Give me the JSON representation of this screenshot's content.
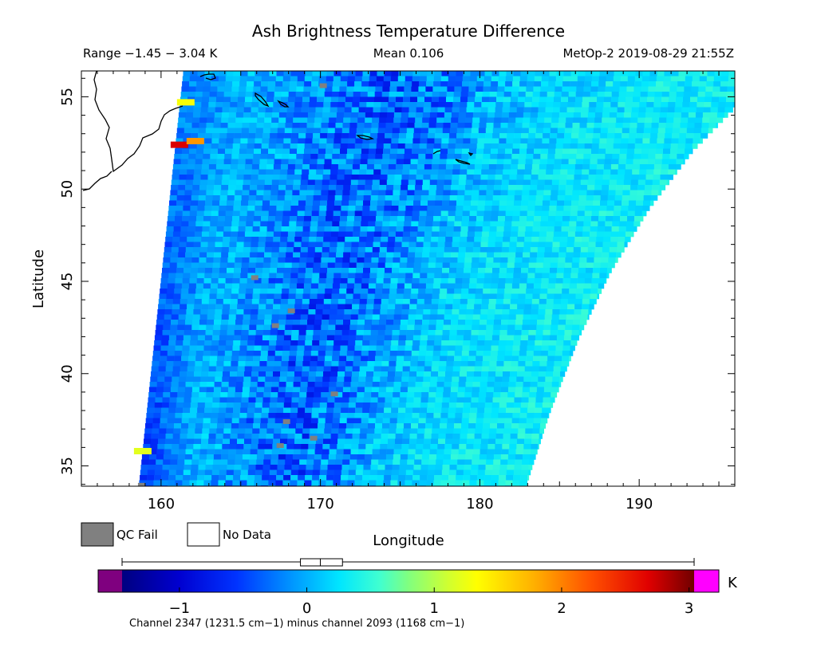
{
  "chart_data": {
    "type": "heatmap",
    "title": "Ash Brightness Temperature Difference",
    "subtitle_left": "Range −1.45 − 3.04 K",
    "subtitle_center": "Mean 0.106",
    "subtitle_right": "MetOp-2 2019-08-29 21:55Z",
    "xlabel": "Longitude",
    "ylabel": "Latitude",
    "xlim": [
      155,
      196
    ],
    "ylim": [
      33.9,
      56.4
    ],
    "xticks": [
      160,
      170,
      180,
      190
    ],
    "yticks": [
      35,
      40,
      45,
      50,
      55
    ],
    "value_range": [
      -1.45,
      3.04
    ],
    "mean": 0.106,
    "swath": {
      "left_edge": [
        [
          161.4,
          56.4
        ],
        [
          158.6,
          33.9
        ]
      ],
      "right_edge": [
        [
          196,
          54.4
        ],
        [
          193.4,
          52.1
        ],
        [
          190.6,
          48.9
        ],
        [
          188.2,
          45.5
        ],
        [
          186.2,
          41.9
        ],
        [
          184.4,
          37.9
        ],
        [
          182.9,
          33.9
        ]
      ]
    },
    "anomalies": [
      {
        "lon": 161.2,
        "lat": 52.4,
        "value": 2.7
      },
      {
        "lon": 162.2,
        "lat": 52.6,
        "value": 1.9
      },
      {
        "lon": 161.6,
        "lat": 54.7,
        "value": 1.3
      },
      {
        "lon": 158.9,
        "lat": 35.8,
        "value": 1.2
      }
    ],
    "qc_fail": [
      {
        "lon": 158.8,
        "lat": 33.95
      },
      {
        "lon": 165.9,
        "lat": 45.2
      },
      {
        "lon": 167.9,
        "lat": 37.4
      },
      {
        "lon": 167.5,
        "lat": 36.1
      },
      {
        "lon": 169.6,
        "lat": 36.5
      },
      {
        "lon": 170.9,
        "lat": 38.9
      },
      {
        "lon": 167.2,
        "lat": 42.6
      },
      {
        "lon": 168.2,
        "lat": 43.4
      },
      {
        "lon": 170.2,
        "lat": 55.6
      }
    ]
  },
  "legend": {
    "qc_fail_label": "QC Fail",
    "no_data_label": "No Data",
    "qc_fail_color": "#808080",
    "no_data_color": "#ffffff"
  },
  "colorbar": {
    "min": -1.45,
    "max": 3.04,
    "mean": 0.106,
    "unit": "K",
    "ticks": [
      -1,
      0,
      1,
      2,
      3
    ],
    "tick_labels": [
      "−1",
      "0",
      "1",
      "2",
      "3"
    ],
    "box_q1": -0.05,
    "box_q3": 0.28,
    "under_color": "#7f007f",
    "over_color": "#ff00ff",
    "caption": "Channel 2347 (1231.5 cm−1) minus channel 2093 (1168 cm−1)"
  },
  "coastline": {
    "color": "#000000"
  }
}
